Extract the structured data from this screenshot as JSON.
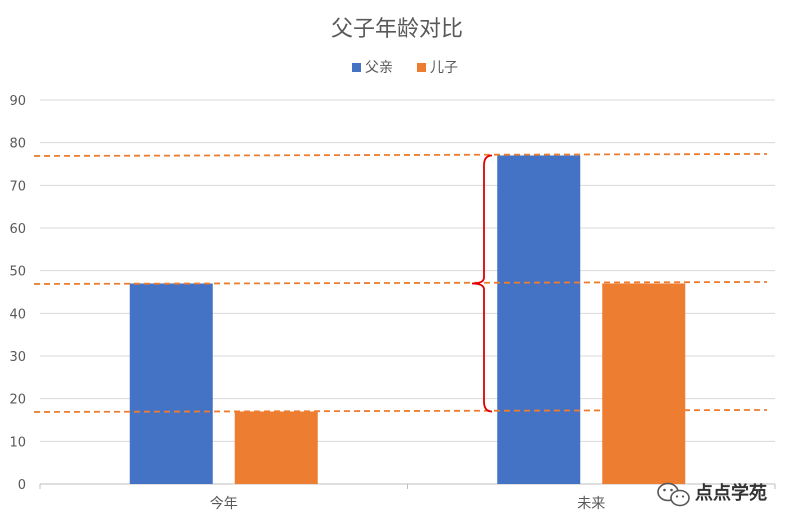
{
  "chart_data": {
    "type": "bar",
    "title": "父子年龄对比",
    "categories": [
      "今年",
      "未来"
    ],
    "series": [
      {
        "name": "父亲",
        "values": [
          47,
          77
        ],
        "color": "#4472C4"
      },
      {
        "name": "儿子",
        "values": [
          17,
          47
        ],
        "color": "#ED7D31"
      }
    ],
    "ylim": [
      0,
      90
    ],
    "yticks": [
      0,
      10,
      20,
      30,
      40,
      50,
      60,
      70,
      80,
      90
    ],
    "grid": true,
    "legend": "top-center",
    "annotations": {
      "reference_lines": [
        77,
        47,
        17
      ],
      "reference_line_color": "#ED7D31",
      "bracket": {
        "from": 17,
        "to": 77,
        "color": "#E00000"
      }
    }
  },
  "watermark": {
    "text": "点点学苑",
    "icon": "wechat-icon"
  }
}
